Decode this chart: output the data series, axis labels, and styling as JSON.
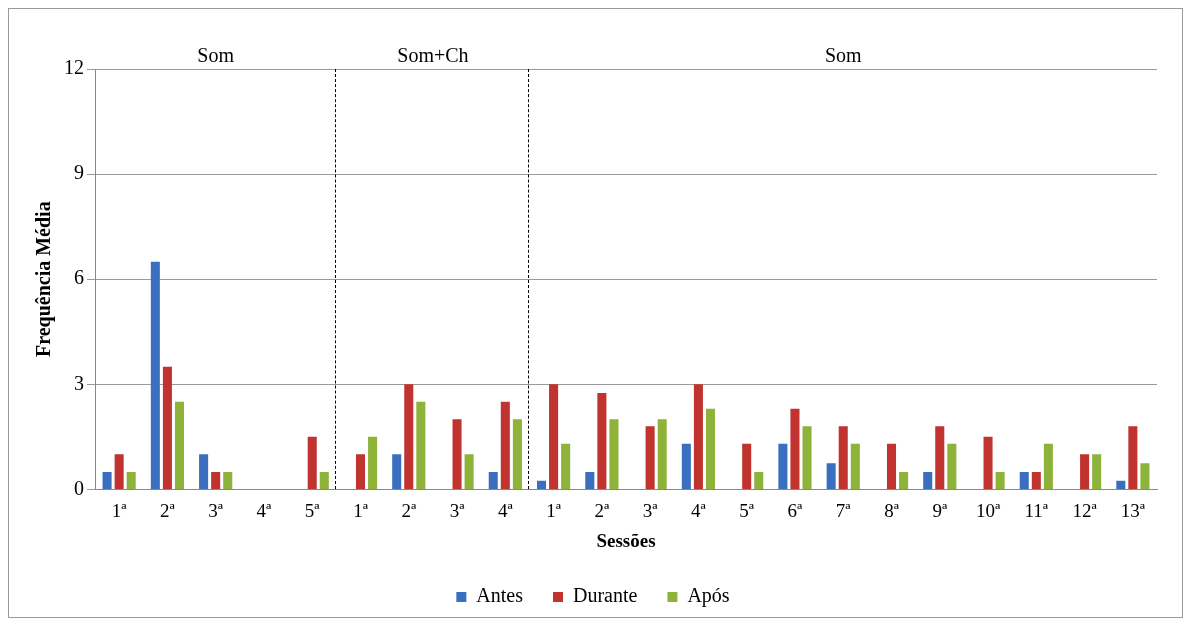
{
  "chart_data": {
    "type": "bar",
    "xlabel": "Sessões",
    "ylabel": "Frequência Média",
    "categories": [
      "1ª",
      "2ª",
      "3ª",
      "4ª",
      "5ª",
      "1ª",
      "2ª",
      "3ª",
      "4ª",
      "1ª",
      "2ª",
      "3ª",
      "4ª",
      "5ª",
      "6ª",
      "7ª",
      "8ª",
      "9ª",
      "10ª",
      "11ª",
      "12ª",
      "13ª"
    ],
    "series": [
      {
        "name": "Antes",
        "color": "#3a6fc0",
        "values": [
          0.5,
          6.5,
          1,
          0,
          0,
          0,
          1,
          0,
          0.5,
          0.25,
          0.5,
          0,
          1.3,
          0,
          1.3,
          0.75,
          0,
          0.5,
          0,
          0.5,
          0,
          0.25
        ]
      },
      {
        "name": "Durante",
        "color": "#c0332f",
        "values": [
          1,
          3.5,
          0.5,
          0,
          1.5,
          1,
          3,
          2,
          2.5,
          3,
          2.75,
          1.8,
          3,
          1.3,
          2.3,
          1.8,
          1.3,
          1.8,
          1.5,
          0.5,
          1,
          1.8
        ]
      },
      {
        "name": "Após",
        "color": "#8db33a",
        "values": [
          0.5,
          2.5,
          0.5,
          0,
          0.5,
          1.5,
          2.5,
          1,
          2,
          1.3,
          2,
          2,
          2.3,
          0.5,
          1.8,
          1.3,
          0.5,
          1.3,
          0.5,
          1.3,
          1,
          0.75
        ]
      }
    ],
    "ylim": [
      0,
      12
    ],
    "yticks": [
      0,
      3,
      6,
      9,
      12
    ],
    "grid": "y",
    "legend": "bottom",
    "annotations": [
      "Som",
      "Som+Ch",
      "Som"
    ]
  }
}
